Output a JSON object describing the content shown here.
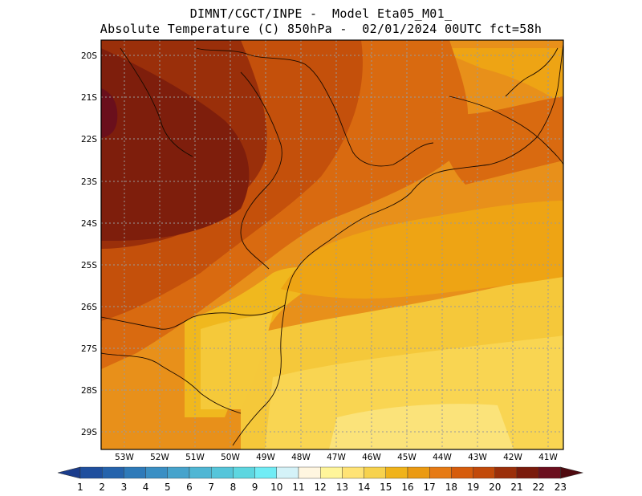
{
  "header": {
    "line1": "DIMNT/CGCT/INPE -  Model Eta05_M01_",
    "line2": "Absolute Temperature (C) 850hPa -  02/01/2024 00UTC fct=58h"
  },
  "map": {
    "lat_labels": [
      "20S",
      "21S",
      "22S",
      "23S",
      "24S",
      "25S",
      "26S",
      "27S",
      "28S",
      "29S"
    ],
    "lon_labels": [
      "53W",
      "52W",
      "51W",
      "50W",
      "49W",
      "48W",
      "47W",
      "46W",
      "45W",
      "44W",
      "43W",
      "42W",
      "41W"
    ],
    "lat_range": [
      -29.4,
      -19.8
    ],
    "lon_range": [
      -53.8,
      -40.6
    ],
    "description_regions": "Southern/southeastern Brazil temperature field"
  },
  "colorbar": {
    "labels": [
      "1",
      "2",
      "3",
      "4",
      "5",
      "6",
      "7",
      "8",
      "9",
      "10",
      "11",
      "12",
      "13",
      "14",
      "15",
      "16",
      "17",
      "18",
      "19",
      "20",
      "21",
      "22",
      "23"
    ],
    "colors": [
      "#1a3c8c",
      "#1f4f9e",
      "#2563ac",
      "#2e7ab9",
      "#3a8fc4",
      "#46a3cc",
      "#4fb6d4",
      "#55c5da",
      "#5dd6e0",
      "#70ecf5",
      "#d4f2f8",
      "#fff6e0",
      "#fff59a",
      "#ffe375",
      "#f7d24d",
      "#f0b31a",
      "#eb9a12",
      "#e67a14",
      "#d65c0c",
      "#c24a0a",
      "#9b2f0a",
      "#7a1b0c",
      "#6b0f1e",
      "#4f0a10"
    ]
  }
}
